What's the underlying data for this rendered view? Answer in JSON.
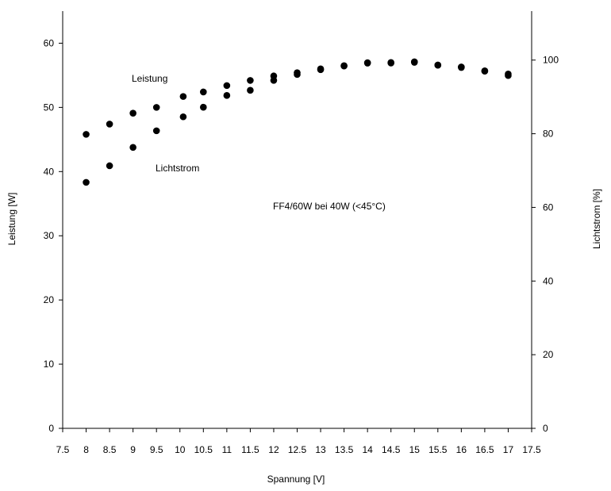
{
  "chart_data": {
    "type": "scatter",
    "title": "",
    "xlabel": "Spannung [V]",
    "ylabel_left": "Leistung [W]",
    "ylabel_right": "Lichtstrom [%]",
    "annotation": "FF4/60W bei 40W (<45°C)",
    "xlim": [
      7.5,
      17.5
    ],
    "ylim_left": [
      0,
      65
    ],
    "ylim_right": [
      0,
      113.3
    ],
    "grid": false,
    "x_ticks": [
      "7.5",
      "8",
      "8.5",
      "9",
      "9.5",
      "10",
      "10.5",
      "11",
      "11.5",
      "12",
      "12.5",
      "13",
      "13.5",
      "14",
      "14.5",
      "15",
      "15.5",
      "16",
      "16.5",
      "17",
      "17.5"
    ],
    "y_left_ticks": [
      "0",
      "10",
      "20",
      "30",
      "40",
      "50",
      "60"
    ],
    "y_right_ticks": [
      "0",
      "20",
      "40",
      "60",
      "80",
      "100"
    ],
    "series": [
      {
        "name": "Leistung",
        "axis": "left",
        "x": [
          8,
          8.5,
          9,
          9.5,
          10.07,
          10.5,
          11,
          11.5,
          12,
          12.5,
          13,
          13.5,
          14,
          14.5,
          15,
          15.5,
          16,
          16.5,
          17
        ],
        "y": [
          45.8,
          47.4,
          49.1,
          50.0,
          51.7,
          52.4,
          53.4,
          54.2,
          54.9,
          55.4,
          56.0,
          56.5,
          56.9,
          57.0,
          57.1,
          56.6,
          56.3,
          55.7,
          55.2
        ]
      },
      {
        "name": "Lichtstrom",
        "axis": "right",
        "x": [
          8,
          8.5,
          9,
          9.5,
          10.07,
          10.5,
          11,
          11.5,
          12,
          12.5,
          13,
          13.5,
          14,
          14.5,
          15,
          15.5,
          16,
          16.5,
          17
        ],
        "y": [
          66.8,
          71.3,
          76.3,
          80.8,
          84.6,
          87.2,
          90.4,
          91.8,
          94.5,
          96.1,
          97.4,
          98.4,
          99.3,
          99.2,
          99.4,
          98.6,
          98.0,
          97.0,
          95.8
        ]
      }
    ]
  }
}
